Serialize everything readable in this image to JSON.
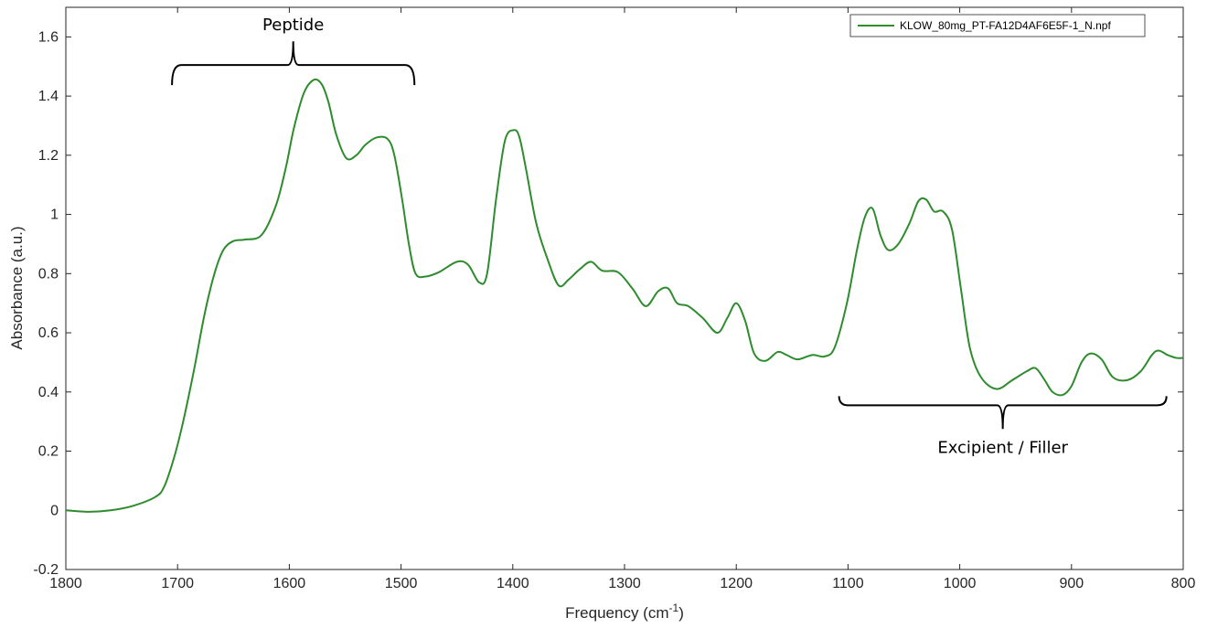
{
  "chart_data": {
    "type": "line",
    "xlabel": "Frequency (cm",
    "xlabel_sup": "-1",
    "xlabel_close": ")",
    "ylabel": "Absorbance (a.u.)",
    "xlim": [
      1800,
      800
    ],
    "ylim": [
      -0.2,
      1.7
    ],
    "x_reversed": true,
    "x_ticks": [
      1800,
      1700,
      1600,
      1500,
      1400,
      1300,
      1200,
      1100,
      1000,
      900,
      800
    ],
    "x_tick_labels": [
      "1800",
      "1700",
      "1600",
      "1500",
      "1400",
      "1300",
      "1200",
      "1100",
      "1000",
      "900",
      "800"
    ],
    "y_ticks": [
      -0.2,
      0,
      0.2,
      0.4,
      0.6,
      0.8,
      1,
      1.2,
      1.4,
      1.6
    ],
    "y_tick_labels": [
      "-0.2",
      "0",
      "0.2",
      "0.4",
      "0.6",
      "0.8",
      "1",
      "1.2",
      "1.4",
      "1.6"
    ],
    "grid": false,
    "legend_position": "top-right",
    "series": [
      {
        "name": "KLOW_80mg_PT-FA12D4AF6E5F-1_N.npf",
        "color": "#2e8b2e",
        "x": [
          1800,
          1780,
          1760,
          1740,
          1720,
          1712,
          1703,
          1695,
          1685,
          1676,
          1667,
          1659,
          1650,
          1640,
          1625,
          1612,
          1603,
          1596,
          1587,
          1578,
          1571,
          1565,
          1558,
          1549,
          1540,
          1532,
          1522,
          1512,
          1506,
          1499,
          1493,
          1487,
          1478,
          1466,
          1450,
          1440,
          1430,
          1423,
          1415,
          1407,
          1399,
          1394,
          1388,
          1379,
          1369,
          1359,
          1350,
          1340,
          1330,
          1320,
          1306,
          1293,
          1281,
          1270,
          1261,
          1253,
          1243,
          1230,
          1217,
          1208,
          1200,
          1192,
          1184,
          1174,
          1163,
          1155,
          1145,
          1132,
          1121,
          1112,
          1101,
          1092,
          1085,
          1078,
          1071,
          1064,
          1055,
          1045,
          1037,
          1030,
          1023,
          1015,
          1007,
          999,
          991,
          981,
          967,
          953,
          940,
          932,
          924,
          917,
          908,
          900,
          891,
          883,
          873,
          863,
          850,
          838,
          828,
          822,
          814,
          806,
          800
        ],
        "y": [
          0.0,
          -0.005,
          0.0,
          0.015,
          0.045,
          0.08,
          0.18,
          0.3,
          0.48,
          0.66,
          0.8,
          0.88,
          0.91,
          0.915,
          0.93,
          1.03,
          1.16,
          1.29,
          1.41,
          1.455,
          1.44,
          1.38,
          1.27,
          1.19,
          1.2,
          1.235,
          1.26,
          1.255,
          1.2,
          1.05,
          0.9,
          0.8,
          0.79,
          0.805,
          0.84,
          0.83,
          0.77,
          0.8,
          1.05,
          1.25,
          1.285,
          1.26,
          1.15,
          0.97,
          0.85,
          0.76,
          0.78,
          0.815,
          0.84,
          0.81,
          0.805,
          0.75,
          0.69,
          0.74,
          0.75,
          0.7,
          0.69,
          0.65,
          0.6,
          0.65,
          0.7,
          0.64,
          0.53,
          0.505,
          0.535,
          0.525,
          0.51,
          0.525,
          0.52,
          0.55,
          0.7,
          0.88,
          0.99,
          1.02,
          0.93,
          0.88,
          0.9,
          0.97,
          1.045,
          1.05,
          1.01,
          1.01,
          0.95,
          0.75,
          0.55,
          0.45,
          0.41,
          0.44,
          0.47,
          0.48,
          0.44,
          0.4,
          0.39,
          0.42,
          0.5,
          0.53,
          0.51,
          0.45,
          0.44,
          0.47,
          0.525,
          0.54,
          0.525,
          0.515,
          0.515
        ]
      }
    ],
    "annotations": [
      {
        "text": "Peptide",
        "x_from": 1705,
        "x_to": 1488,
        "y": 1.505,
        "tip_y": 1.585,
        "bracket_opens": "down"
      },
      {
        "text": "Excipient / Filler",
        "x_from": 1108,
        "x_to": 815,
        "y": 0.355,
        "tip_y": 0.275,
        "bracket_opens": "up"
      }
    ]
  }
}
